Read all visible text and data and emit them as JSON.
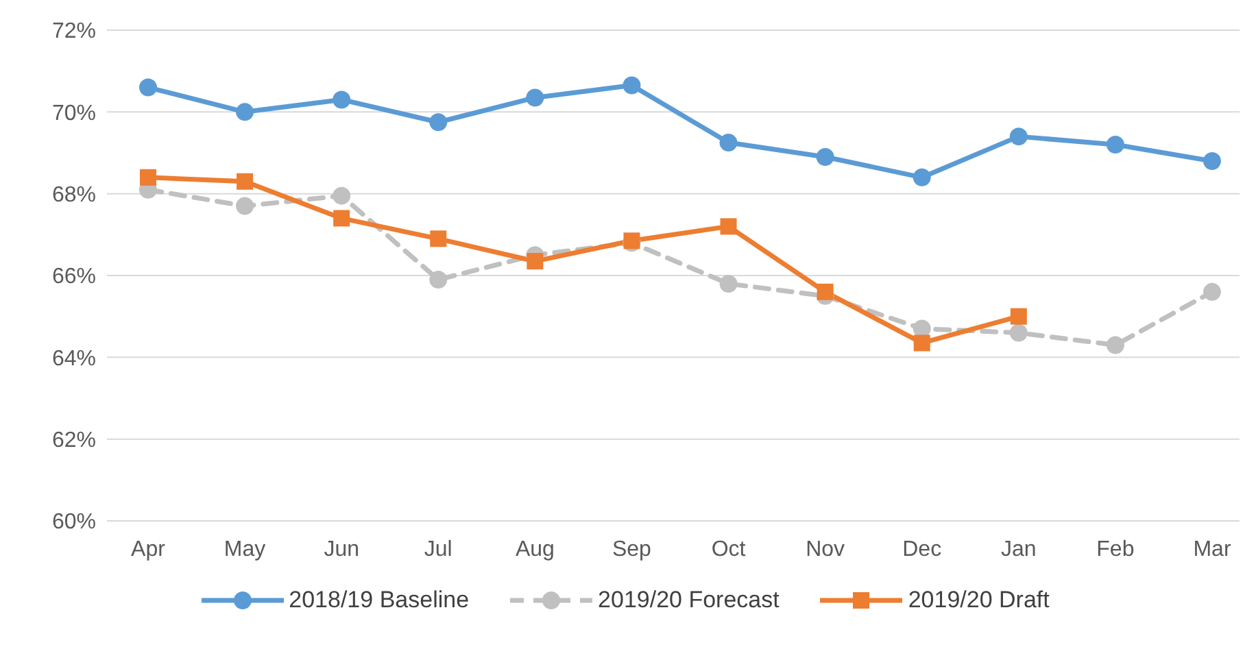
{
  "chart_data": {
    "type": "line",
    "categories": [
      "Apr",
      "May",
      "Jun",
      "Jul",
      "Aug",
      "Sep",
      "Oct",
      "Nov",
      "Dec",
      "Jan",
      "Feb",
      "Mar"
    ],
    "series": [
      {
        "name": "2018/19 Baseline",
        "color": "#5b9bd5",
        "marker": "circle",
        "line_style": "solid",
        "values": [
          70.6,
          70.0,
          70.3,
          69.75,
          70.35,
          70.65,
          69.25,
          68.9,
          68.4,
          69.4,
          69.2,
          68.8
        ]
      },
      {
        "name": "2019/20 Forecast",
        "color": "#c0c0c0",
        "marker": "circle",
        "line_style": "dashed",
        "values": [
          68.1,
          67.7,
          67.95,
          65.9,
          66.5,
          66.8,
          65.8,
          65.5,
          64.7,
          64.6,
          64.3,
          65.6
        ]
      },
      {
        "name": "2019/20 Draft",
        "color": "#ed7d31",
        "marker": "square",
        "line_style": "solid",
        "values": [
          68.4,
          68.3,
          67.4,
          66.9,
          66.35,
          66.85,
          67.2,
          65.6,
          64.35,
          65.0,
          null,
          null
        ]
      }
    ],
    "ylim": [
      60,
      72
    ],
    "yticks": [
      {
        "value": 60,
        "label": "60%"
      },
      {
        "value": 62,
        "label": "62%"
      },
      {
        "value": 64,
        "label": "64%"
      },
      {
        "value": 66,
        "label": "66%"
      },
      {
        "value": 68,
        "label": "68%"
      },
      {
        "value": 70,
        "label": "70%"
      },
      {
        "value": 72,
        "label": "72%"
      }
    ],
    "grid": "y",
    "legend": "bottom"
  }
}
